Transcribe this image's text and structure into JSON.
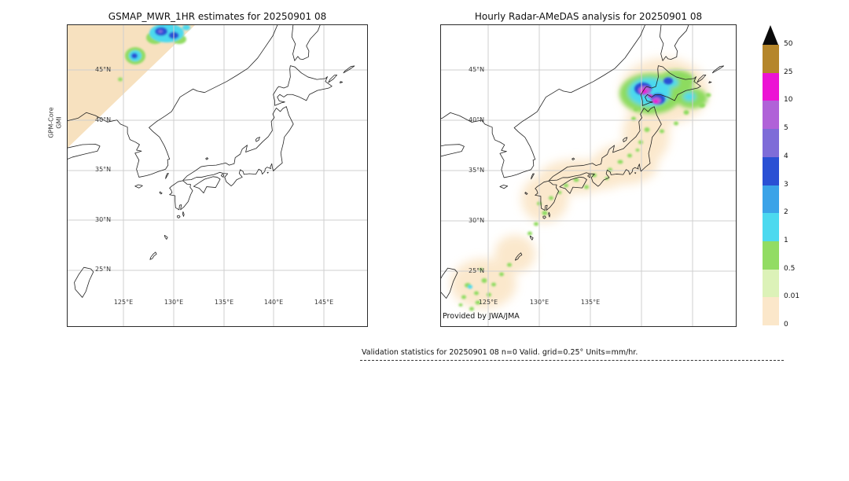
{
  "figure": {
    "background": "#ffffff"
  },
  "panels": [
    {
      "id": "gsmap",
      "title": "GSMAP_MWR_1HR estimates for 20250901 08",
      "ylabel_line1": "GPM-Core",
      "ylabel_line2": "GMI",
      "lat_ticks": [
        "45°N",
        "40°N",
        "35°N",
        "30°N",
        "25°N"
      ],
      "lon_ticks": [
        "125°E",
        "130°E",
        "135°E",
        "140°E",
        "145°E"
      ]
    },
    {
      "id": "radar_amedas",
      "title": "Hourly Radar-AMeDAS analysis for 20250901 08",
      "credit": "Provided by JWA/JMA",
      "lat_ticks": [
        "45°N",
        "40°N",
        "35°N",
        "30°N",
        "25°N"
      ],
      "lon_ticks": [
        "125°E",
        "130°E",
        "135°E"
      ]
    }
  ],
  "colorbar": {
    "units": "mm/hr",
    "labels_top_to_bottom": [
      "50",
      "25",
      "10",
      "5",
      "4",
      "3",
      "2",
      "1",
      "0.5",
      "0.01",
      "0"
    ],
    "colors_top_to_bottom": [
      "#b5862b",
      "#ec13d4",
      "#b062d8",
      "#7e6cd8",
      "#2a50d4",
      "#3ba3e8",
      "#4cd9ef",
      "#92dc63",
      "#dcf2b8",
      "#fbe7ca"
    ],
    "overflow_marker": "black triangle"
  },
  "footer": {
    "text": "Validation statistics for 20250901 08  n=0 Valid. grid=0.25° Units=mm/hr."
  },
  "map_colors": {
    "swath_fill": "#f7e1bf",
    "light_precip": "#fbe7ca",
    "coastline": "#222222",
    "gridline": "#cfcfcf"
  },
  "chart_data": {
    "type": "heatmap",
    "title": "GSMaP vs Radar-AMeDAS hourly precipitation comparison, 2025-09-01 08",
    "units": "mm/hr",
    "grid_resolution_deg": 0.25,
    "levels_mm_per_hr": [
      0,
      0.01,
      0.5,
      1,
      2,
      3,
      4,
      5,
      10,
      25,
      50
    ],
    "level_colors_low_to_high": [
      "#fbe7ca",
      "#dcf2b8",
      "#92dc63",
      "#4cd9ef",
      "#3ba3e8",
      "#2a50d4",
      "#7e6cd8",
      "#b062d8",
      "#ec13d4",
      "#b5862b"
    ],
    "panels": [
      {
        "title": "GSMAP_MWR_1HR estimates for 20250901 08",
        "sensor": "GPM-Core GMI",
        "lon_ticks_deg_e": [
          125,
          130,
          135,
          140,
          145
        ],
        "lat_ticks_deg_n": [
          25,
          30,
          35,
          40,
          45
        ],
        "observed_features": [
          "diagonal satellite swath of very light rain (< 0.01 mm/hr) across the north-west corner of the map",
          "convective cell of 1-4 mm/hr near 48-49N 129-130E",
          "smaller cell of 0.5-4 mm/hr near 46-47N 126E",
          "no precipitation over the Japanese islands"
        ]
      },
      {
        "title": "Hourly Radar-AMeDAS analysis for 20250901 08",
        "source": "JWA/JMA",
        "lon_ticks_deg_e": [
          125,
          130,
          135
        ],
        "lat_ticks_deg_n": [
          25,
          30,
          35,
          40,
          45
        ],
        "observed_features": [
          "light precipitation halo (0-0.5 mm/hr) along the whole Japanese archipelago from Okinawa to Hokkaido",
          "moderate to heavy cells (1-25 mm/hr with magenta cores) over south-western Hokkaido near 42-44N 140-142E",
          "scattered 0.5-2 mm/hr cells around the Okinawa and Amami islands, Kyushu and central Honshu"
        ]
      }
    ],
    "validation_note": {
      "n": 0
    }
  }
}
